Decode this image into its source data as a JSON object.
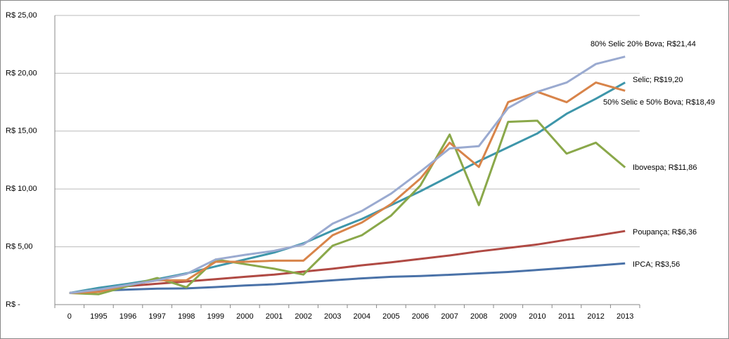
{
  "chart_data": {
    "type": "line",
    "categories": [
      "0",
      "1995",
      "1996",
      "1997",
      "1998",
      "1999",
      "2000",
      "2001",
      "2002",
      "2003",
      "2004",
      "2005",
      "2006",
      "2007",
      "2008",
      "2009",
      "2010",
      "2011",
      "2012",
      "2013"
    ],
    "ylim": [
      0,
      25
    ],
    "yticks": [
      {
        "value": 0,
        "label": "R$ -"
      },
      {
        "value": 5,
        "label": "R$ 5,00"
      },
      {
        "value": 10,
        "label": "R$ 10,00"
      },
      {
        "value": 15,
        "label": "R$ 15,00"
      },
      {
        "value": 20,
        "label": "R$ 20,00"
      },
      {
        "value": 25,
        "label": "R$ 25,00"
      }
    ],
    "grid": true,
    "series": [
      {
        "name": "IPCA",
        "color": "#4a72a8",
        "values": [
          1.0,
          1.2,
          1.3,
          1.38,
          1.4,
          1.52,
          1.65,
          1.76,
          1.93,
          2.1,
          2.27,
          2.4,
          2.47,
          2.58,
          2.7,
          2.82,
          3.0,
          3.18,
          3.37,
          3.56
        ],
        "value_labels": [
          null,
          null,
          null,
          null,
          null,
          null,
          null,
          null,
          null,
          null,
          null,
          null,
          null,
          null,
          null,
          null,
          null,
          null,
          null,
          "IPCA;  R$3,56"
        ]
      },
      {
        "name": "Poupança",
        "color": "#b04a44",
        "values": [
          1.0,
          1.3,
          1.6,
          1.8,
          2.0,
          2.2,
          2.4,
          2.6,
          2.85,
          3.1,
          3.4,
          3.65,
          3.95,
          4.25,
          4.6,
          4.9,
          5.2,
          5.6,
          5.95,
          6.36
        ],
        "value_labels": [
          null,
          null,
          null,
          null,
          null,
          null,
          null,
          null,
          null,
          null,
          null,
          null,
          null,
          null,
          null,
          null,
          null,
          null,
          null,
          "Poupança;  R$6,36"
        ]
      },
      {
        "name": "Selic",
        "color": "#3e96aa",
        "values": [
          1.0,
          1.45,
          1.8,
          2.2,
          2.7,
          3.3,
          3.9,
          4.5,
          5.3,
          6.4,
          7.4,
          8.6,
          9.8,
          11.1,
          12.4,
          13.6,
          14.8,
          16.5,
          17.8,
          19.2
        ],
        "value_labels": [
          null,
          null,
          null,
          null,
          null,
          null,
          null,
          null,
          null,
          null,
          null,
          null,
          null,
          null,
          null,
          null,
          null,
          null,
          null,
          "Selic;  R$19,20"
        ]
      },
      {
        "name": "Ibovespa",
        "color": "#8aa84a",
        "values": [
          1.0,
          0.9,
          1.6,
          2.3,
          1.5,
          3.9,
          3.5,
          3.1,
          2.6,
          5.1,
          6.0,
          7.7,
          10.3,
          14.7,
          8.6,
          15.8,
          15.9,
          13.05,
          14.0,
          11.86
        ],
        "value_labels": [
          null,
          null,
          null,
          null,
          null,
          null,
          null,
          null,
          null,
          null,
          null,
          null,
          null,
          null,
          null,
          null,
          null,
          null,
          null,
          "Ibovespa;  R$11,86"
        ]
      },
      {
        "name": "50% Selic e 50% Bova",
        "color": "#d8844a",
        "values": [
          1.0,
          1.1,
          1.7,
          2.1,
          2.1,
          3.7,
          3.7,
          3.8,
          3.8,
          6.0,
          7.1,
          8.7,
          10.9,
          14.0,
          11.9,
          17.5,
          18.4,
          17.5,
          19.2,
          18.49
        ],
        "value_labels": [
          null,
          null,
          null,
          null,
          null,
          null,
          null,
          null,
          null,
          null,
          null,
          null,
          null,
          null,
          null,
          null,
          null,
          null,
          null,
          "50% Selic e 50% Bova;  R$18,49"
        ]
      },
      {
        "name": "80% Selic 20% Bova",
        "color": "#9aaad0",
        "values": [
          1.0,
          1.3,
          1.7,
          2.1,
          2.65,
          3.9,
          4.3,
          4.65,
          5.2,
          7.0,
          8.1,
          9.6,
          11.5,
          13.5,
          13.7,
          17.0,
          18.4,
          19.2,
          20.8,
          21.44
        ],
        "value_labels": [
          null,
          null,
          null,
          null,
          null,
          null,
          null,
          null,
          null,
          null,
          null,
          null,
          null,
          null,
          null,
          null,
          null,
          null,
          null,
          "80% Selic 20% Bova;  R$21,44"
        ]
      }
    ]
  }
}
